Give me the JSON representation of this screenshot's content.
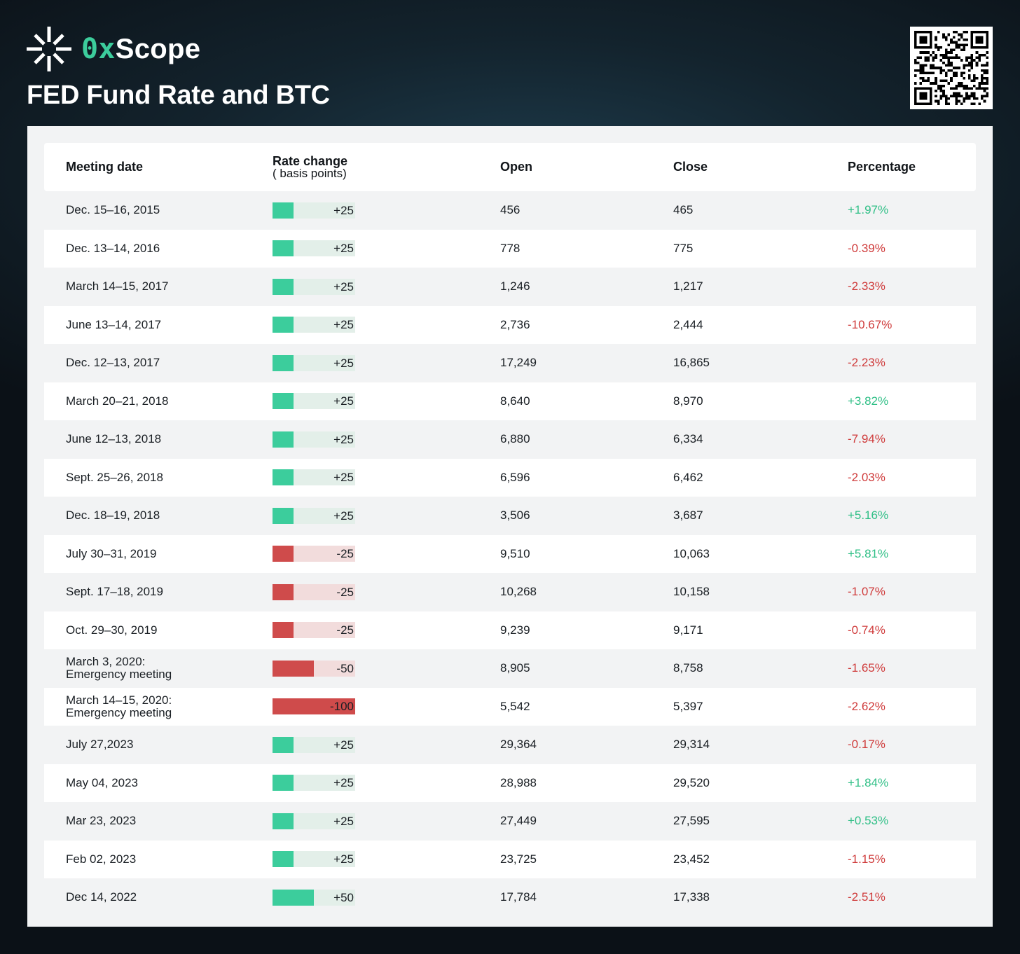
{
  "brand": {
    "logo_accent": "0x",
    "logo_rest": "Scope",
    "accent_color": "#3ccd9c"
  },
  "title": "FED Fund Rate and BTC",
  "colors": {
    "positive": "#3ccd9c",
    "negative": "#cf4b4b"
  },
  "table": {
    "headers": {
      "date": "Meeting date",
      "rate": "Rate change",
      "rate_sub": "( basis points)",
      "open": "Open",
      "close": "Close",
      "pct": "Percentage"
    },
    "rows": [
      {
        "date": "Dec. 15–16, 2015",
        "date2": "",
        "rate": "+25",
        "rate_value": 25,
        "open": "456",
        "close": "465",
        "pct": "+1.97%"
      },
      {
        "date": "Dec. 13–14, 2016",
        "date2": "",
        "rate": "+25",
        "rate_value": 25,
        "open": "778",
        "close": "775",
        "pct": "-0.39%"
      },
      {
        "date": "March 14–15, 2017",
        "date2": "",
        "rate": "+25",
        "rate_value": 25,
        "open": "1,246",
        "close": "1,217",
        "pct": "-2.33%"
      },
      {
        "date": "June 13–14, 2017",
        "date2": "",
        "rate": "+25",
        "rate_value": 25,
        "open": "2,736",
        "close": "2,444",
        "pct": "-10.67%"
      },
      {
        "date": "Dec. 12–13, 2017",
        "date2": "",
        "rate": "+25",
        "rate_value": 25,
        "open": "17,249",
        "close": "16,865",
        "pct": "-2.23%"
      },
      {
        "date": "March 20–21, 2018",
        "date2": "",
        "rate": "+25",
        "rate_value": 25,
        "open": "8,640",
        "close": "8,970",
        "pct": "+3.82%"
      },
      {
        "date": "June 12–13, 2018",
        "date2": "",
        "rate": "+25",
        "rate_value": 25,
        "open": "6,880",
        "close": "6,334",
        "pct": "-7.94%"
      },
      {
        "date": "Sept. 25–26, 2018",
        "date2": "",
        "rate": "+25",
        "rate_value": 25,
        "open": "6,596",
        "close": "6,462",
        "pct": "-2.03%"
      },
      {
        "date": "Dec. 18–19, 2018",
        "date2": "",
        "rate": "+25",
        "rate_value": 25,
        "open": "3,506",
        "close": "3,687",
        "pct": "+5.16%"
      },
      {
        "date": "July 30–31, 2019",
        "date2": "",
        "rate": "-25",
        "rate_value": -25,
        "open": "9,510",
        "close": "10,063",
        "pct": "+5.81%"
      },
      {
        "date": "Sept. 17–18, 2019",
        "date2": "",
        "rate": "-25",
        "rate_value": -25,
        "open": "10,268",
        "close": "10,158",
        "pct": "-1.07%"
      },
      {
        "date": "Oct. 29–30, 2019",
        "date2": "",
        "rate": "-25",
        "rate_value": -25,
        "open": "9,239",
        "close": "9,171",
        "pct": "-0.74%"
      },
      {
        "date": "March 3, 2020:",
        "date2": "Emergency meeting",
        "rate": "-50",
        "rate_value": -50,
        "open": "8,905",
        "close": "8,758",
        "pct": "-1.65%"
      },
      {
        "date": "March 14–15, 2020:",
        "date2": "Emergency meeting",
        "rate": "-100",
        "rate_value": -100,
        "open": "5,542",
        "close": "5,397",
        "pct": "-2.62%"
      },
      {
        "date": "July 27,2023",
        "date2": "",
        "rate": "+25",
        "rate_value": 25,
        "open": "29,364",
        "close": "29,314",
        "pct": "-0.17%"
      },
      {
        "date": "May 04, 2023",
        "date2": "",
        "rate": "+25",
        "rate_value": 25,
        "open": "28,988",
        "close": "29,520",
        "pct": "+1.84%"
      },
      {
        "date": "Mar 23, 2023",
        "date2": "",
        "rate": "+25",
        "rate_value": 25,
        "open": "27,449",
        "close": "27,595",
        "pct": "+0.53%"
      },
      {
        "date": "Feb 02, 2023",
        "date2": "",
        "rate": "+25",
        "rate_value": 25,
        "open": "23,725",
        "close": "23,452",
        "pct": "-1.15%"
      },
      {
        "date": "Dec 14, 2022",
        "date2": "",
        "rate": "+50",
        "rate_value": 50,
        "open": "17,784",
        "close": "17,338",
        "pct": "-2.51%"
      }
    ]
  }
}
